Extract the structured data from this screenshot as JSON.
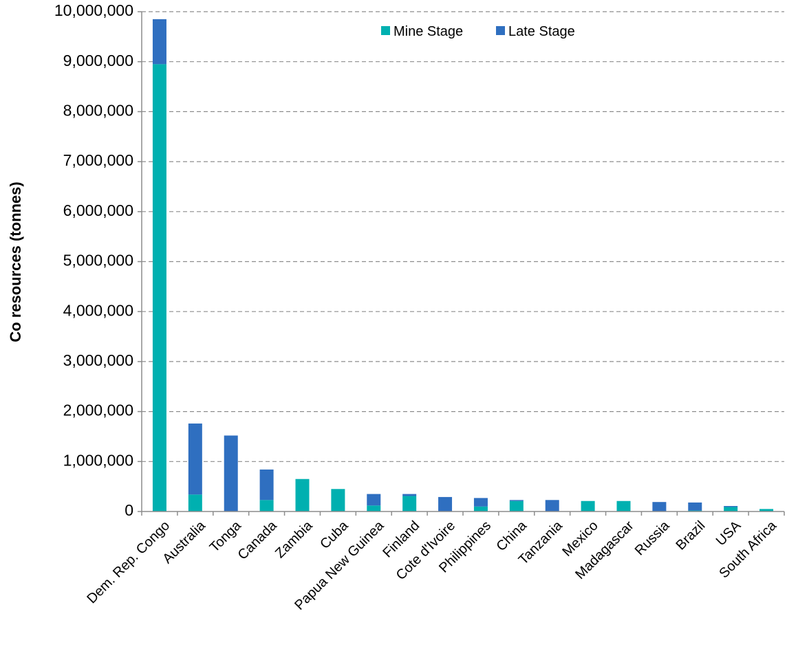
{
  "chart_data": {
    "type": "bar",
    "stacked": true,
    "ylabel": "Co resources  (tonnes)",
    "xlabel": "",
    "title": "",
    "ylim": [
      0,
      10000000
    ],
    "y_ticks": [
      0,
      1000000,
      2000000,
      3000000,
      4000000,
      5000000,
      6000000,
      7000000,
      8000000,
      9000000,
      10000000
    ],
    "y_tick_labels": [
      "0",
      "1,000,000",
      "2,000,000",
      "3,000,000",
      "4,000,000",
      "5,000,000",
      "6,000,000",
      "7,000,000",
      "8,000,000",
      "9,000,000",
      "10,000,000"
    ],
    "grid": true,
    "legend_position": "top-center",
    "categories": [
      "Dem. Rep. Congo",
      "Australia",
      "Tonga",
      "Canada",
      "Zambia",
      "Cuba",
      "Papua New Guinea",
      "Finland",
      "Cote d'Ivoire",
      "Philippines",
      "China",
      "Tanzania",
      "Mexico",
      "Madagascar",
      "Russia",
      "Brazil",
      "USA",
      "South Africa"
    ],
    "series": [
      {
        "name": "Mine Stage",
        "color": "#00b0b0",
        "values": [
          8950000,
          340000,
          0,
          230000,
          650000,
          450000,
          120000,
          310000,
          0,
          100000,
          210000,
          0,
          210000,
          210000,
          0,
          20000,
          90000,
          50000
        ]
      },
      {
        "name": "Late Stage",
        "color": "#2f6fc0",
        "values": [
          900000,
          1420000,
          1520000,
          610000,
          0,
          0,
          230000,
          40000,
          290000,
          170000,
          20000,
          230000,
          0,
          0,
          190000,
          160000,
          20000,
          0
        ]
      }
    ]
  }
}
